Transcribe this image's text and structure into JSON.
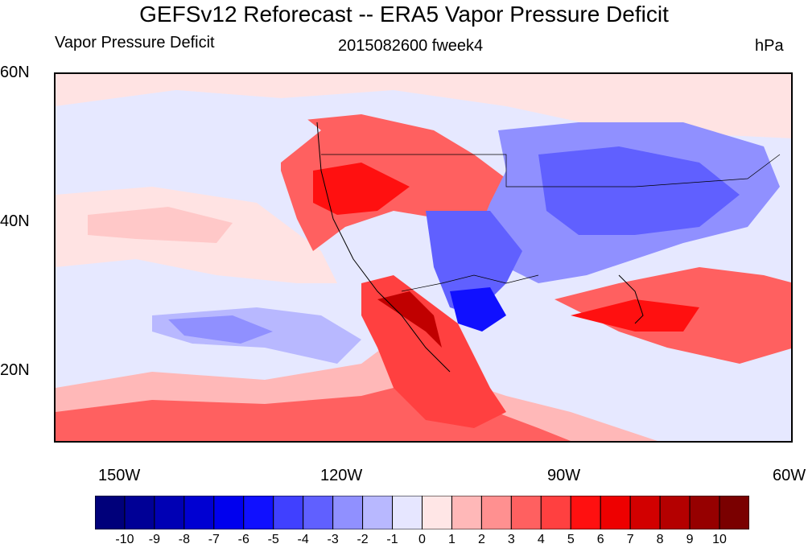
{
  "title": "GEFSv12 Reforecast -- ERA5 Vapor Pressure Deficit",
  "left_subtitle": "Vapor Pressure Deficit",
  "center_subtitle": "2015082600 fweek4",
  "right_subtitle": "hPa",
  "lat_labels": [
    "60N",
    "40N",
    "20N"
  ],
  "lon_labels": [
    "150W",
    "120W",
    "90W",
    "60W"
  ],
  "colorbar": {
    "labels": [
      "-10",
      "-9",
      "-8",
      "-7",
      "-6",
      "-5",
      "-4",
      "-3",
      "-2",
      "-1",
      "0",
      "1",
      "2",
      "3",
      "4",
      "5",
      "6",
      "7",
      "8",
      "9",
      "10"
    ],
    "colors": [
      "#00007a",
      "#000096",
      "#0000b4",
      "#0000d2",
      "#0000ee",
      "#1010ff",
      "#4040ff",
      "#6060ff",
      "#9090ff",
      "#b8b8ff",
      "#e6e6ff",
      "#ffe6e6",
      "#ffb8b8",
      "#ff9090",
      "#ff6060",
      "#ff4040",
      "#ff1010",
      "#ee0000",
      "#d20000",
      "#b40000",
      "#960000",
      "#7a0000"
    ]
  },
  "map_colors": {
    "ocean_light_blue": "#e6e8ff",
    "light_pink": "#ffe3e3",
    "pink": "#ffb8b8",
    "red": "#ff4040",
    "dark_red": "#c00000",
    "blue": "#6060ff",
    "deep_blue": "#1010ff"
  }
}
